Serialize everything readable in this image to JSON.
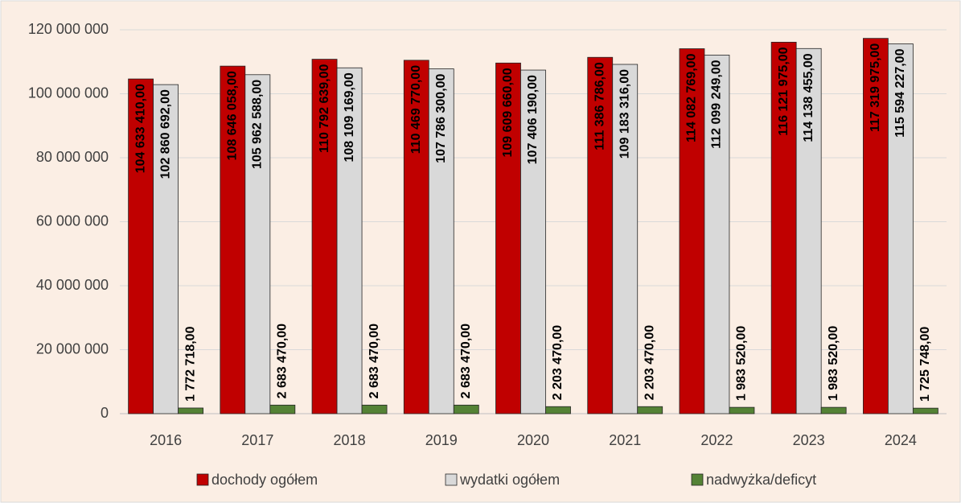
{
  "chart_data": {
    "type": "bar",
    "categories": [
      "2016",
      "2017",
      "2018",
      "2019",
      "2020",
      "2021",
      "2022",
      "2023",
      "2024"
    ],
    "series": [
      {
        "name": "dochody ogółem",
        "color": "#c00000",
        "values": [
          104633410,
          108646058,
          110792639,
          110469770,
          109609660,
          111386786,
          114082769,
          116121975,
          117319975
        ],
        "value_labels": [
          "104 633 410,00",
          "108 646 058,00",
          "110 792 639,00",
          "110 469 770,00",
          "109 609 660,00",
          "111 386 786,00",
          "114 082 769,00",
          "116 121 975,00",
          "117 319 975,00"
        ]
      },
      {
        "name": "wydatki ogółem",
        "color": "#d9d9d9",
        "values": [
          102860692,
          105962588,
          108109169,
          107786300,
          107406190,
          109183316,
          112099249,
          114138455,
          115594227
        ],
        "value_labels": [
          "102 860 692,00",
          "105 962 588,00",
          "108 109 169,00",
          "107 786 300,00",
          "107 406 190,00",
          "109 183 316,00",
          "112 099 249,00",
          "114 138 455,00",
          "115 594 227,00"
        ]
      },
      {
        "name": "nadwyżka/deficyt",
        "color": "#548235",
        "values": [
          1772718,
          2683470,
          2683470,
          2683470,
          2203470,
          2203470,
          1983520,
          1983520,
          1725748
        ],
        "value_labels": [
          "1 772 718,00",
          "2 683 470,00",
          "2 683 470,00",
          "2 683 470,00",
          "2 203 470,00",
          "2 203 470,00",
          "1 983 520,00",
          "1 983 520,00",
          "1 725 748,00"
        ]
      }
    ],
    "ylim": [
      0,
      120000000
    ],
    "yticks": [
      0,
      {
        "value": 20000000,
        "label": "20 000 000"
      },
      {
        "value": 40000000,
        "label": "40 000 000"
      },
      {
        "value": 60000000,
        "label": "60 000 000"
      },
      {
        "value": 80000000,
        "label": "80 000 000"
      },
      {
        "value": 100000000,
        "label": "100 000 000"
      },
      {
        "value": 120000000,
        "label": "120 000 000"
      }
    ],
    "grid": true,
    "legend": "bottom"
  }
}
